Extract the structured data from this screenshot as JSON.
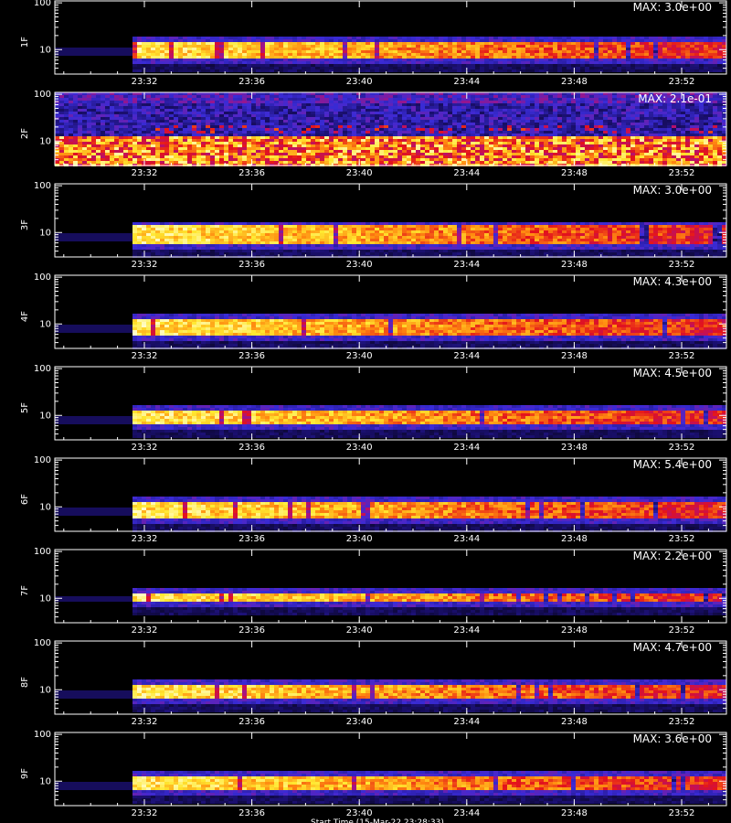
{
  "chart_data": {
    "type": "heatmap",
    "xlabel": "",
    "x_ticks": [
      "23:32",
      "23:36",
      "23:40",
      "23:44",
      "23:48",
      "23:52"
    ],
    "x_range": [
      "23:28:40",
      "23:53:40"
    ],
    "y_scale": "log",
    "y_ticks": [
      10,
      100
    ],
    "y_range": [
      3,
      110
    ],
    "data_start": "23:31:30",
    "panels": [
      {
        "label": "1F",
        "max_text": "MAX: 3.0e+00",
        "band_low": 6.5,
        "band_high": 14,
        "peak": 3.0
      },
      {
        "label": "2F",
        "max_text": "MAX: 2.1e-01",
        "band_low": 3,
        "band_high": 12,
        "peak": 0.21,
        "background": "noisy"
      },
      {
        "label": "3F",
        "max_text": "MAX: 3.0e+00",
        "band_low": 6,
        "band_high": 13,
        "peak": 3.0
      },
      {
        "label": "4F",
        "max_text": "MAX: 4.3e+00",
        "band_low": 6,
        "band_high": 12,
        "peak": 4.3
      },
      {
        "label": "5F",
        "max_text": "MAX: 4.5e+00",
        "band_low": 6.5,
        "band_high": 12,
        "peak": 4.5
      },
      {
        "label": "6F",
        "max_text": "MAX: 5.4e+00",
        "band_low": 6,
        "band_high": 12,
        "peak": 5.4
      },
      {
        "label": "7F",
        "max_text": "MAX: 2.2e+00",
        "band_low": 9,
        "band_high": 12,
        "peak": 2.2
      },
      {
        "label": "8F",
        "max_text": "MAX: 4.7e+00",
        "band_low": 6.5,
        "band_high": 12,
        "peak": 4.7
      },
      {
        "label": "9F",
        "max_text": "MAX: 3.6e+00",
        "band_low": 6.5,
        "band_high": 12,
        "peak": 3.6
      }
    ],
    "colormap": [
      "#000000",
      "#1a0f6e",
      "#3a2bd6",
      "#b0107a",
      "#e3121c",
      "#ff8a10",
      "#ffe830",
      "#ffffe0"
    ],
    "bottom_text": "Start Time (15-Mar-22 23:28:33)"
  }
}
